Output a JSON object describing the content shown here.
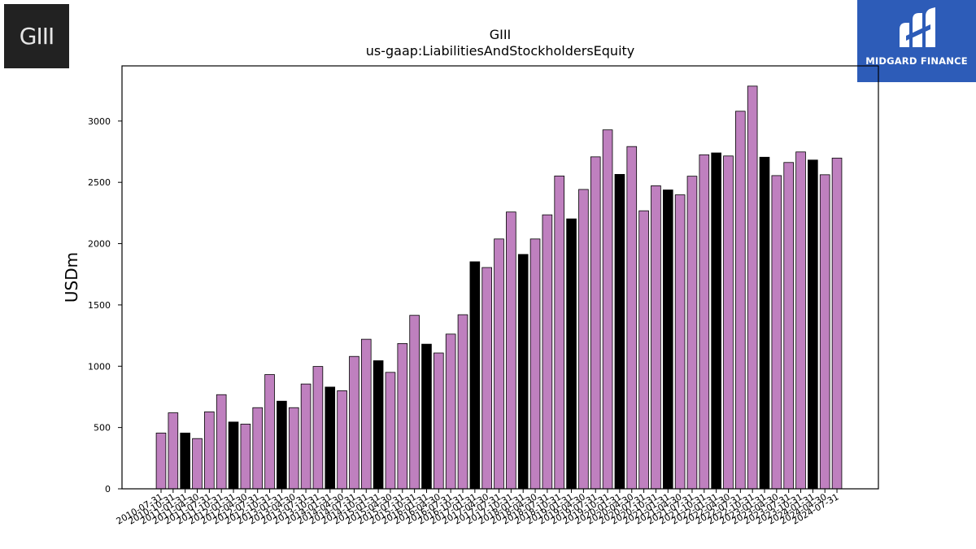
{
  "logos": {
    "left_text": "GIII",
    "right_text": "MIDGARD FINANCE"
  },
  "chart_data": {
    "type": "bar",
    "title": "GIII",
    "subtitle": "us-gaap:LiabilitiesAndStockholdersEquity",
    "xlabel": "",
    "ylabel": "USDm",
    "ylim": [
      0,
      3450
    ],
    "yticks": [
      0,
      500,
      1000,
      1500,
      2000,
      2500,
      3000
    ],
    "grid": false,
    "colors": {
      "default": "#bf80bf",
      "highlight": "#000000",
      "edge": "#000000"
    },
    "categories": [
      "2010-07-31",
      "2010-10-31",
      "2011-01-31",
      "2011-04-30",
      "2011-07-31",
      "2011-10-31",
      "2012-01-31",
      "2012-04-30",
      "2012-07-31",
      "2012-10-31",
      "2013-01-31",
      "2013-04-30",
      "2013-07-31",
      "2013-10-31",
      "2014-01-31",
      "2014-04-30",
      "2014-07-31",
      "2014-10-31",
      "2015-01-31",
      "2015-04-30",
      "2015-07-31",
      "2015-10-31",
      "2016-01-31",
      "2016-04-30",
      "2016-07-31",
      "2016-10-31",
      "2017-01-31",
      "2017-04-30",
      "2017-07-31",
      "2017-10-31",
      "2018-01-31",
      "2018-04-30",
      "2018-07-31",
      "2018-10-31",
      "2019-01-31",
      "2019-04-30",
      "2019-07-31",
      "2019-10-31",
      "2020-01-31",
      "2020-04-30",
      "2020-07-31",
      "2020-10-31",
      "2021-01-31",
      "2021-04-30",
      "2021-07-31",
      "2021-10-31",
      "2022-01-31",
      "2022-04-30",
      "2022-07-31",
      "2022-10-31",
      "2023-01-31",
      "2023-04-30",
      "2023-07-31",
      "2023-10-31",
      "2024-01-31",
      "2024-04-30",
      "2024-07-31"
    ],
    "values": [
      455,
      620,
      455,
      410,
      628,
      768,
      545,
      528,
      662,
      932,
      715,
      662,
      855,
      998,
      830,
      800,
      1080,
      1220,
      1045,
      950,
      1185,
      1415,
      1180,
      1108,
      1262,
      1420,
      1852,
      1805,
      2038,
      2258,
      1912,
      2038,
      2235,
      2552,
      2202,
      2442,
      2708,
      2928,
      2565,
      2792,
      2268,
      2472,
      2438,
      2398,
      2550,
      2725,
      2740,
      2715,
      3080,
      3285,
      2705,
      2555,
      2662,
      2748,
      2682,
      2562,
      2698
    ],
    "highlight": [
      false,
      false,
      true,
      false,
      false,
      false,
      true,
      false,
      false,
      false,
      true,
      false,
      false,
      false,
      true,
      false,
      false,
      false,
      true,
      false,
      false,
      false,
      true,
      false,
      false,
      false,
      true,
      false,
      false,
      false,
      true,
      false,
      false,
      false,
      true,
      false,
      false,
      false,
      true,
      false,
      false,
      false,
      true,
      false,
      false,
      false,
      true,
      false,
      false,
      false,
      true,
      false,
      false,
      false,
      true,
      false,
      false
    ]
  }
}
